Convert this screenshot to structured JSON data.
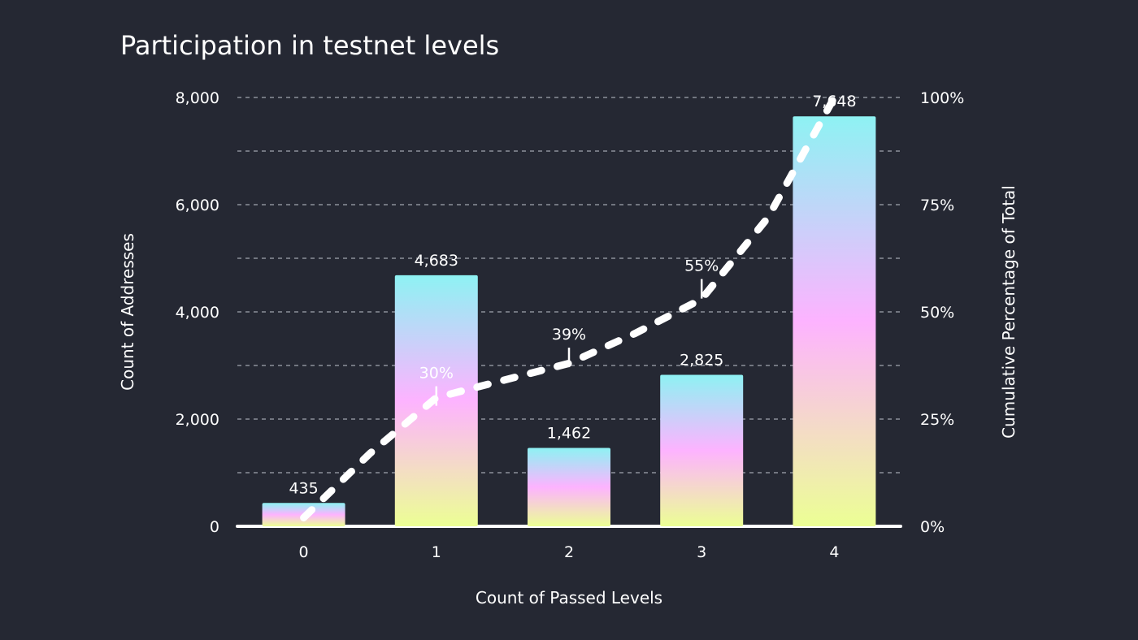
{
  "chart_data": {
    "type": "bar",
    "title": "Participation in testnet levels",
    "xlabel": "Count of Passed Levels",
    "ylabel": "Count of Addresses",
    "y2label": "Cumulative Percentage of Total",
    "categories": [
      "0",
      "1",
      "2",
      "3",
      "4"
    ],
    "values": [
      435,
      4683,
      1462,
      2825,
      7648
    ],
    "value_labels": [
      "435",
      "4,683",
      "1,462",
      "2,825",
      "7,648"
    ],
    "ylim": [
      0,
      8000
    ],
    "y_ticks": [
      0,
      2000,
      4000,
      6000,
      8000
    ],
    "y_tick_labels": [
      "0",
      "2,000",
      "4,000",
      "6,000",
      "8,000"
    ],
    "y2lim": [
      0,
      100
    ],
    "y2_ticks": [
      0,
      25,
      50,
      75,
      100
    ],
    "y2_tick_labels": [
      "0%",
      "25%",
      "50%",
      "75%",
      "100%"
    ],
    "cumulative_line": {
      "style": "dashed",
      "color": "#ffffff",
      "points": [
        {
          "x": 0,
          "y": 2
        },
        {
          "x": 0.5,
          "y": 17
        },
        {
          "x": 1,
          "y": 30
        },
        {
          "x": 1.5,
          "y": 34
        },
        {
          "x": 2,
          "y": 38
        },
        {
          "x": 2.5,
          "y": 45
        },
        {
          "x": 3,
          "y": 53
        },
        {
          "x": 3.5,
          "y": 72
        },
        {
          "x": 4,
          "y": 100
        }
      ]
    },
    "callouts": [
      {
        "x": 1,
        "label": "30%",
        "value": 30
      },
      {
        "x": 2,
        "label": "39%",
        "value": 39
      },
      {
        "x": 3,
        "label": "55%",
        "value": 55
      }
    ],
    "grid": true,
    "colors": {
      "background": "#252833",
      "bar_gradient": [
        "#8ef2f3",
        "#fdb3ff",
        "#ecff94"
      ],
      "grid": "#8c8f99",
      "text": "#ffffff"
    }
  }
}
